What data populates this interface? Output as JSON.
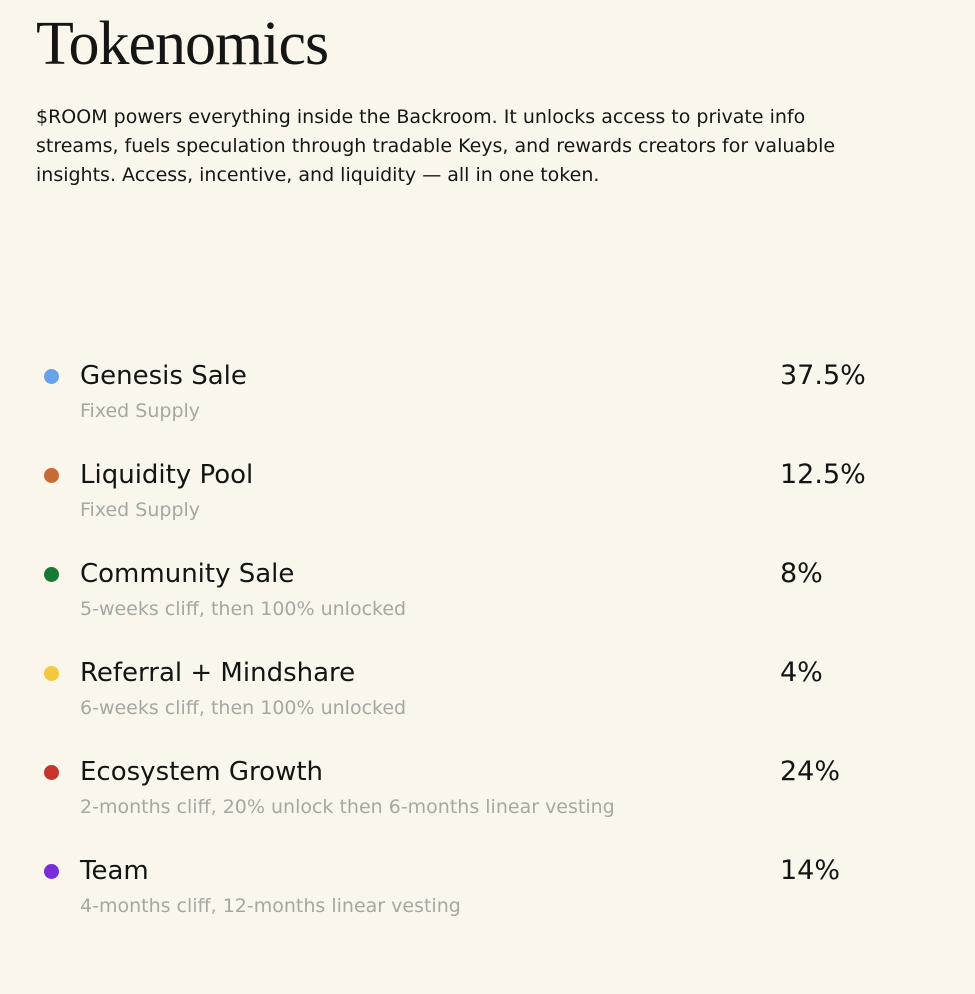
{
  "page": {
    "title": "Tokenomics",
    "description": "$ROOM powers everything inside the Backroom. It unlocks access to private info streams, fuels speculation through tradable Keys, and rewards creators for valuable insights. Access, incentive, and liquidity — all in one token."
  },
  "colors": {
    "background": "#FAF6EC",
    "text": "#141414",
    "muted": "#A7A7A2"
  },
  "allocations": [
    {
      "name": "Genesis Sale",
      "detail": "Fixed Supply",
      "percent": "37.5%",
      "color": "#67A3E8",
      "icon": "blue-dot-icon"
    },
    {
      "name": "Liquidity Pool",
      "detail": "Fixed Supply",
      "percent": "12.5%",
      "color": "#C76B33",
      "icon": "orange-dot-icon"
    },
    {
      "name": "Community Sale",
      "detail": "5-weeks cliff, then 100% unlocked",
      "percent": "8%",
      "color": "#177A33",
      "icon": "green-dot-icon"
    },
    {
      "name": "Referral + Mindshare",
      "detail": "6-weeks cliff, then 100% unlocked",
      "percent": "4%",
      "color": "#F3C83F",
      "icon": "yellow-dot-icon"
    },
    {
      "name": "Ecosystem Growth",
      "detail": "2-months cliff, 20% unlock then 6-months linear vesting",
      "percent": "24%",
      "color": "#C5352C",
      "icon": "red-dot-icon"
    },
    {
      "name": "Team",
      "detail": "4-months cliff, 12-months linear vesting",
      "percent": "14%",
      "color": "#7B2CDA",
      "icon": "purple-dot-icon"
    }
  ],
  "chart_data": {
    "type": "pie",
    "title": "Tokenomics",
    "categories": [
      "Genesis Sale",
      "Liquidity Pool",
      "Community Sale",
      "Referral + Mindshare",
      "Ecosystem Growth",
      "Team"
    ],
    "values": [
      37.5,
      12.5,
      8,
      4,
      24,
      14
    ],
    "unit": "%",
    "colors": [
      "#67A3E8",
      "#C76B33",
      "#177A33",
      "#F3C83F",
      "#C5352C",
      "#7B2CDA"
    ],
    "annotations": [
      "Fixed Supply",
      "Fixed Supply",
      "5-weeks cliff, then 100% unlocked",
      "6-weeks cliff, then 100% unlocked",
      "2-months cliff, 20% unlock then 6-months linear vesting",
      "4-months cliff, 12-months linear vesting"
    ],
    "legend_position": "list"
  }
}
